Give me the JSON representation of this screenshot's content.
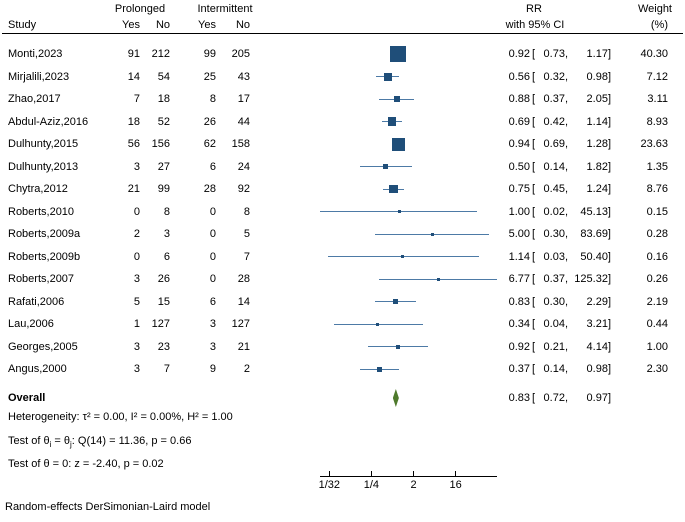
{
  "header": {
    "study": "Study",
    "prolonged": "Prolonged",
    "intermittent": "Intermittent",
    "yes": "Yes",
    "no": "No",
    "rr": "RR",
    "rr_ci": "with 95% CI",
    "weight": "Weight",
    "weight_pct": "(%)"
  },
  "chart_data": {
    "type": "forest",
    "x_scale": "log2",
    "x_ticks": [
      {
        "label": "1/32",
        "value": 0.03125
      },
      {
        "label": "1/4",
        "value": 0.25
      },
      {
        "label": "2",
        "value": 2
      },
      {
        "label": "16",
        "value": 16
      }
    ],
    "studies": [
      {
        "study": "Monti,2023",
        "prolonged_yes": 91,
        "prolonged_no": 212,
        "intermittent_yes": 99,
        "intermittent_no": 205,
        "rr": 0.92,
        "ci_low": 0.73,
        "ci_high": 1.17,
        "weight": 40.3
      },
      {
        "study": "Mirjalili,2023",
        "prolonged_yes": 14,
        "prolonged_no": 54,
        "intermittent_yes": 25,
        "intermittent_no": 43,
        "rr": 0.56,
        "ci_low": 0.32,
        "ci_high": 0.98,
        "weight": 7.12
      },
      {
        "study": "Zhao,2017",
        "prolonged_yes": 7,
        "prolonged_no": 18,
        "intermittent_yes": 8,
        "intermittent_no": 17,
        "rr": 0.88,
        "ci_low": 0.37,
        "ci_high": 2.05,
        "weight": 3.11
      },
      {
        "study": "Abdul-Aziz,2016",
        "prolonged_yes": 18,
        "prolonged_no": 52,
        "intermittent_yes": 26,
        "intermittent_no": 44,
        "rr": 0.69,
        "ci_low": 0.42,
        "ci_high": 1.14,
        "weight": 8.93
      },
      {
        "study": "Dulhunty,2015",
        "prolonged_yes": 56,
        "prolonged_no": 156,
        "intermittent_yes": 62,
        "intermittent_no": 158,
        "rr": 0.94,
        "ci_low": 0.69,
        "ci_high": 1.28,
        "weight": 23.63
      },
      {
        "study": "Dulhunty,2013",
        "prolonged_yes": 3,
        "prolonged_no": 27,
        "intermittent_yes": 6,
        "intermittent_no": 24,
        "rr": 0.5,
        "ci_low": 0.14,
        "ci_high": 1.82,
        "weight": 1.35
      },
      {
        "study": "Chytra,2012",
        "prolonged_yes": 21,
        "prolonged_no": 99,
        "intermittent_yes": 28,
        "intermittent_no": 92,
        "rr": 0.75,
        "ci_low": 0.45,
        "ci_high": 1.24,
        "weight": 8.76
      },
      {
        "study": "Roberts,2010",
        "prolonged_yes": 0,
        "prolonged_no": 8,
        "intermittent_yes": 0,
        "intermittent_no": 8,
        "rr": 1.0,
        "ci_low": 0.02,
        "ci_high": 45.13,
        "weight": 0.15
      },
      {
        "study": "Roberts,2009a",
        "prolonged_yes": 2,
        "prolonged_no": 3,
        "intermittent_yes": 0,
        "intermittent_no": 5,
        "rr": 5.0,
        "ci_low": 0.3,
        "ci_high": 83.69,
        "weight": 0.28
      },
      {
        "study": "Roberts,2009b",
        "prolonged_yes": 0,
        "prolonged_no": 6,
        "intermittent_yes": 0,
        "intermittent_no": 7,
        "rr": 1.14,
        "ci_low": 0.03,
        "ci_high": 50.4,
        "weight": 0.16
      },
      {
        "study": "Roberts,2007",
        "prolonged_yes": 3,
        "prolonged_no": 26,
        "intermittent_yes": 0,
        "intermittent_no": 28,
        "rr": 6.77,
        "ci_low": 0.37,
        "ci_high": 125.32,
        "weight": 0.26
      },
      {
        "study": "Rafati,2006",
        "prolonged_yes": 5,
        "prolonged_no": 15,
        "intermittent_yes": 6,
        "intermittent_no": 14,
        "rr": 0.83,
        "ci_low": 0.3,
        "ci_high": 2.29,
        "weight": 2.19
      },
      {
        "study": "Lau,2006",
        "prolonged_yes": 1,
        "prolonged_no": 127,
        "intermittent_yes": 3,
        "intermittent_no": 127,
        "rr": 0.34,
        "ci_low": 0.04,
        "ci_high": 3.21,
        "weight": 0.44
      },
      {
        "study": "Georges,2005",
        "prolonged_yes": 3,
        "prolonged_no": 23,
        "intermittent_yes": 3,
        "intermittent_no": 21,
        "rr": 0.92,
        "ci_low": 0.21,
        "ci_high": 4.14,
        "weight": 1.0
      },
      {
        "study": "Angus,2000",
        "prolonged_yes": 3,
        "prolonged_no": 7,
        "intermittent_yes": 9,
        "intermittent_no": 2,
        "rr": 0.37,
        "ci_low": 0.14,
        "ci_high": 0.98,
        "weight": 2.3
      }
    ],
    "overall": {
      "label": "Overall",
      "rr": 0.83,
      "ci_low": 0.72,
      "ci_high": 0.97
    }
  },
  "stats": {
    "heterogeneity": "Heterogeneity: τ² = 0.00, I² = 0.00%, H² = 1.00",
    "test_theta": {
      "pre": "Test of θ",
      "sub1": "i",
      "mid": " = θ",
      "sub2": "j",
      "post": ": Q(14) = 11.36, p = 0.66"
    },
    "test_z": "Test of θ = 0: z = -2.40, p = 0.02"
  },
  "footer": "Random-effects DerSimonian-Laird model",
  "colors": {
    "marker": "#1f4e79",
    "ci_line": "#4d7aa6",
    "diamond": "#4e7a2c"
  }
}
